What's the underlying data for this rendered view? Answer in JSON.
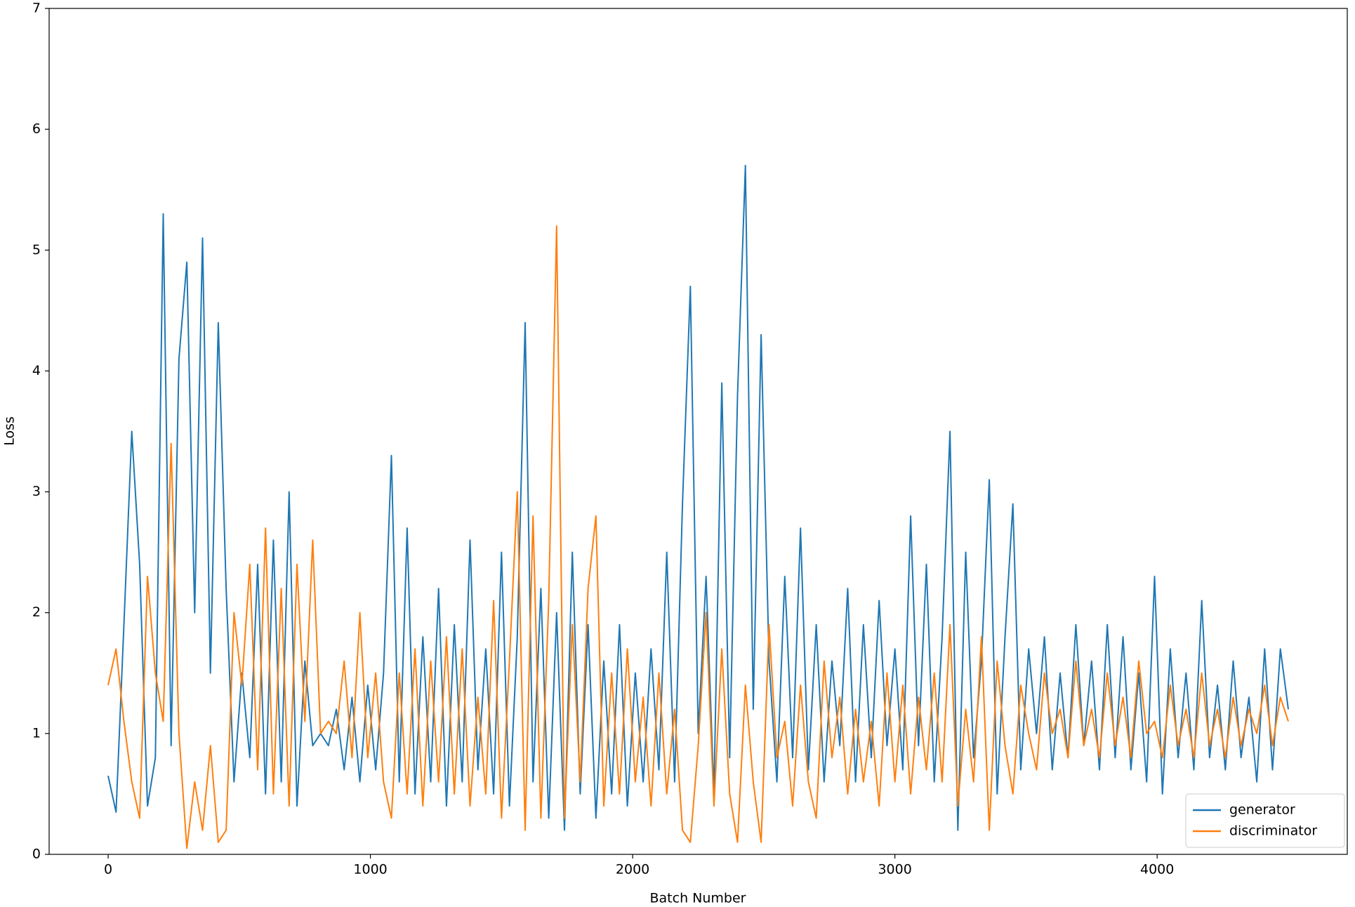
{
  "chart_data": {
    "type": "line",
    "xlabel": "Batch Number",
    "ylabel": "Loss",
    "x": [
      0,
      30,
      60,
      90,
      120,
      150,
      180,
      210,
      240,
      270,
      300,
      330,
      360,
      390,
      420,
      450,
      480,
      510,
      540,
      570,
      600,
      630,
      660,
      690,
      720,
      750,
      780,
      810,
      840,
      870,
      900,
      930,
      960,
      990,
      1020,
      1050,
      1080,
      1110,
      1140,
      1170,
      1200,
      1230,
      1260,
      1290,
      1320,
      1350,
      1380,
      1410,
      1440,
      1470,
      1500,
      1530,
      1560,
      1590,
      1620,
      1650,
      1680,
      1710,
      1740,
      1770,
      1800,
      1830,
      1860,
      1890,
      1920,
      1950,
      1980,
      2010,
      2040,
      2070,
      2100,
      2130,
      2160,
      2190,
      2220,
      2250,
      2280,
      2310,
      2340,
      2370,
      2400,
      2430,
      2460,
      2490,
      2520,
      2550,
      2580,
      2610,
      2640,
      2670,
      2700,
      2730,
      2760,
      2790,
      2820,
      2850,
      2880,
      2910,
      2940,
      2970,
      3000,
      3030,
      3060,
      3090,
      3120,
      3150,
      3180,
      3210,
      3240,
      3270,
      3300,
      3330,
      3360,
      3390,
      3420,
      3450,
      3480,
      3510,
      3540,
      3570,
      3600,
      3630,
      3660,
      3690,
      3720,
      3750,
      3780,
      3810,
      3840,
      3870,
      3900,
      3930,
      3960,
      3990,
      4020,
      4050,
      4080,
      4110,
      4140,
      4170,
      4200,
      4230,
      4260,
      4290,
      4320,
      4350,
      4380,
      4410,
      4440,
      4470,
      4500
    ],
    "series": [
      {
        "name": "generator",
        "color": "#1f77b4",
        "values": [
          0.65,
          0.35,
          1.9,
          3.5,
          2.4,
          0.4,
          0.8,
          5.3,
          0.9,
          4.1,
          4.9,
          2.0,
          5.1,
          1.5,
          4.4,
          2.2,
          0.6,
          1.5,
          0.8,
          2.4,
          0.5,
          2.6,
          0.6,
          3.0,
          0.4,
          1.6,
          0.9,
          1.0,
          0.9,
          1.2,
          0.7,
          1.3,
          0.6,
          1.4,
          0.7,
          1.5,
          3.3,
          0.6,
          2.7,
          0.5,
          1.8,
          0.6,
          2.2,
          0.4,
          1.9,
          0.6,
          2.6,
          0.7,
          1.7,
          0.5,
          2.5,
          0.4,
          1.8,
          4.4,
          0.6,
          2.2,
          0.3,
          2.0,
          0.2,
          2.5,
          0.5,
          1.9,
          0.3,
          1.6,
          0.5,
          1.9,
          0.4,
          1.5,
          0.6,
          1.7,
          0.7,
          2.5,
          0.6,
          2.9,
          4.7,
          1.0,
          2.3,
          0.5,
          3.9,
          0.8,
          3.8,
          5.7,
          1.2,
          4.3,
          1.6,
          0.6,
          2.3,
          0.8,
          2.7,
          0.7,
          1.9,
          0.6,
          1.6,
          0.9,
          2.2,
          0.6,
          1.9,
          0.8,
          2.1,
          0.9,
          1.7,
          0.7,
          2.8,
          0.9,
          2.4,
          0.6,
          1.8,
          3.5,
          0.2,
          2.5,
          0.8,
          1.6,
          3.1,
          0.5,
          1.8,
          2.9,
          0.7,
          1.7,
          1.0,
          1.8,
          0.7,
          1.5,
          0.8,
          1.9,
          0.9,
          1.6,
          0.7,
          1.9,
          0.8,
          1.8,
          0.7,
          1.5,
          0.6,
          2.3,
          0.5,
          1.7,
          0.8,
          1.5,
          0.7,
          2.1,
          0.8,
          1.4,
          0.7,
          1.6,
          0.8,
          1.3,
          0.6,
          1.7,
          0.7,
          1.7,
          1.2
        ]
      },
      {
        "name": "discriminator",
        "color": "#ff7f0e",
        "values": [
          1.4,
          1.7,
          1.1,
          0.6,
          0.3,
          2.3,
          1.5,
          1.1,
          3.4,
          1.0,
          0.05,
          0.6,
          0.2,
          0.9,
          0.1,
          0.2,
          2.0,
          1.4,
          2.4,
          0.7,
          2.7,
          0.5,
          2.2,
          0.4,
          2.4,
          1.1,
          2.6,
          1.0,
          1.1,
          1.0,
          1.6,
          0.8,
          2.0,
          0.8,
          1.5,
          0.6,
          0.3,
          1.5,
          0.5,
          1.7,
          0.4,
          1.6,
          0.6,
          1.8,
          0.5,
          1.7,
          0.4,
          1.3,
          0.5,
          2.1,
          0.3,
          1.6,
          3.0,
          0.2,
          2.8,
          0.3,
          2.1,
          5.2,
          0.3,
          1.9,
          0.6,
          2.2,
          2.8,
          0.4,
          1.5,
          0.5,
          1.7,
          0.6,
          1.3,
          0.4,
          1.5,
          0.5,
          1.2,
          0.2,
          0.1,
          0.9,
          2.0,
          0.4,
          1.7,
          0.5,
          0.1,
          1.4,
          0.6,
          0.1,
          1.9,
          0.8,
          1.1,
          0.4,
          1.4,
          0.6,
          0.3,
          1.6,
          0.8,
          1.3,
          0.5,
          1.2,
          0.6,
          1.1,
          0.4,
          1.5,
          0.6,
          1.4,
          0.5,
          1.3,
          0.7,
          1.5,
          0.6,
          1.9,
          0.4,
          1.2,
          0.6,
          1.8,
          0.2,
          1.6,
          0.9,
          0.5,
          1.4,
          1.0,
          0.7,
          1.5,
          1.0,
          1.2,
          0.8,
          1.6,
          0.9,
          1.2,
          0.8,
          1.5,
          0.9,
          1.3,
          0.8,
          1.6,
          1.0,
          1.1,
          0.8,
          1.4,
          0.9,
          1.2,
          0.8,
          1.5,
          0.9,
          1.2,
          0.8,
          1.3,
          0.9,
          1.2,
          1.0,
          1.4,
          0.9,
          1.3,
          1.1
        ]
      }
    ],
    "xlim": [
      -225,
      4725
    ],
    "ylim": [
      0,
      7
    ],
    "xticks": [
      0,
      1000,
      2000,
      3000,
      4000
    ],
    "yticks": [
      0,
      1,
      2,
      3,
      4,
      5,
      6,
      7
    ],
    "grid": false,
    "legend": "lower right"
  }
}
